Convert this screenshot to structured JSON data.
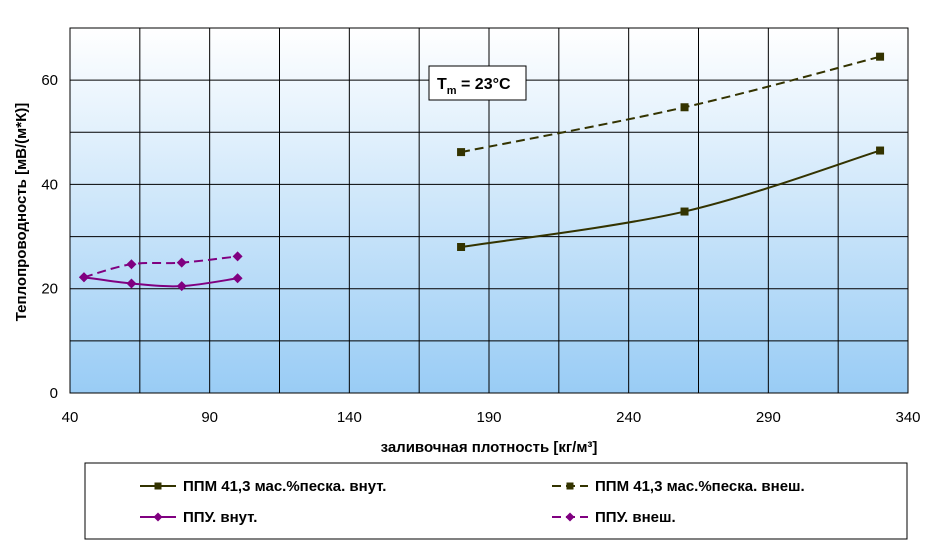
{
  "chart_data": {
    "type": "line",
    "title": "",
    "xlabel": "заливочная плотность [кг/м³]",
    "ylabel": "Теплопроводность [мВ/(м*К)]",
    "xlim": [
      40,
      340
    ],
    "ylim": [
      0,
      70
    ],
    "xticks": [
      40,
      90,
      140,
      190,
      240,
      290,
      340
    ],
    "yticks": [
      0,
      20,
      40,
      60
    ],
    "grid": true,
    "legend_position": "bottom",
    "annotation": {
      "main": "T",
      "sub": "m",
      "rest": " = 23°C"
    },
    "series": [
      {
        "name": "ППМ 41,3 мас.%песка. внут.",
        "color": "#333300",
        "dash": "solid",
        "marker": "square",
        "x": [
          180,
          260,
          330
        ],
        "y": [
          28,
          34.8,
          46.5
        ]
      },
      {
        "name": "ППМ 41,3 мас.%песка. внеш.",
        "color": "#333300",
        "dash": "dashed",
        "marker": "square",
        "x": [
          180,
          260,
          330
        ],
        "y": [
          46.2,
          54.8,
          64.5
        ]
      },
      {
        "name": "ППУ. внут.",
        "color": "#800080",
        "dash": "solid",
        "marker": "diamond",
        "x": [
          45,
          62,
          80,
          100
        ],
        "y": [
          22.2,
          21,
          20.5,
          22
        ]
      },
      {
        "name": "ППУ. внеш.",
        "color": "#800080",
        "dash": "dashed",
        "marker": "diamond",
        "x": [
          45,
          62,
          80,
          100
        ],
        "y": [
          22.2,
          24.7,
          25,
          26.2
        ]
      }
    ]
  }
}
